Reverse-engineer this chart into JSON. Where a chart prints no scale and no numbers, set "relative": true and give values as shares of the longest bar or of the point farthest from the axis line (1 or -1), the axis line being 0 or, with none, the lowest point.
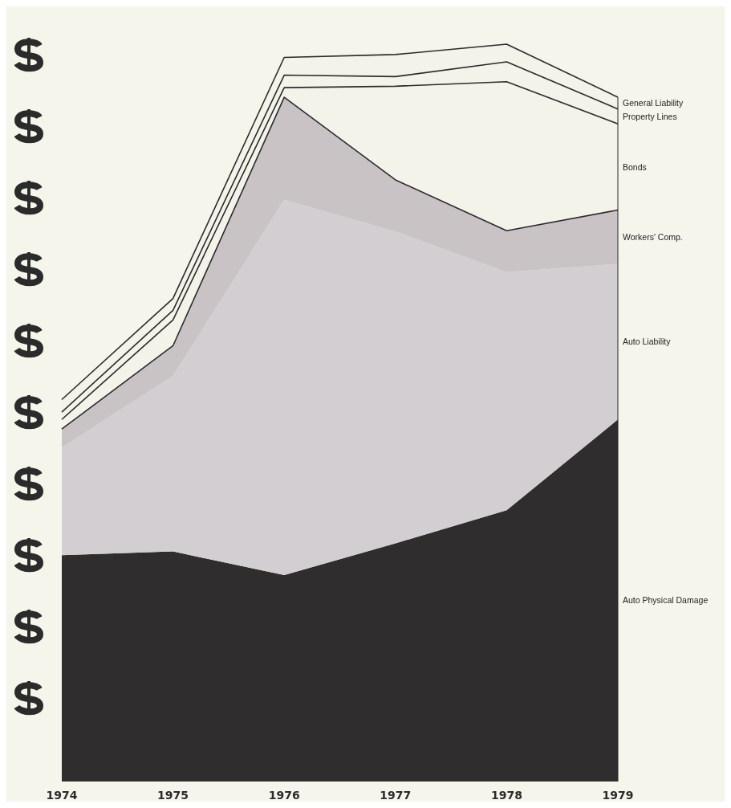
{
  "chart_data": {
    "type": "area",
    "stacked": true,
    "relative": true,
    "categories": [
      "1974",
      "1975",
      "1976",
      "1977",
      "1978",
      "1979"
    ],
    "series": [
      {
        "name": "Auto Physical Damage",
        "color": "#2f2d2e",
        "values": [
          0.307,
          0.312,
          0.28,
          0.323,
          0.368,
          0.491
        ]
      },
      {
        "name": "Auto Liability",
        "color": "#d3ced1",
        "values": [
          0.146,
          0.238,
          0.509,
          0.423,
          0.323,
          0.211
        ]
      },
      {
        "name": "Workers' Comp.",
        "color": "#c9c3c6",
        "values": [
          0.025,
          0.041,
          0.139,
          0.07,
          0.056,
          0.073
        ]
      },
      {
        "name": "Bonds",
        "color": "#f4f3ea",
        "values": [
          0.013,
          0.035,
          0.013,
          0.127,
          0.202,
          0.117
        ]
      },
      {
        "name": "Property Lines",
        "color": "#f4f3ea",
        "values": [
          0.01,
          0.013,
          0.017,
          0.013,
          0.027,
          0.02
        ]
      },
      {
        "name": "General Liability",
        "color": "#f4f3ea",
        "values": [
          0.017,
          0.016,
          0.024,
          0.03,
          0.024,
          0.016
        ]
      }
    ]
  }
}
